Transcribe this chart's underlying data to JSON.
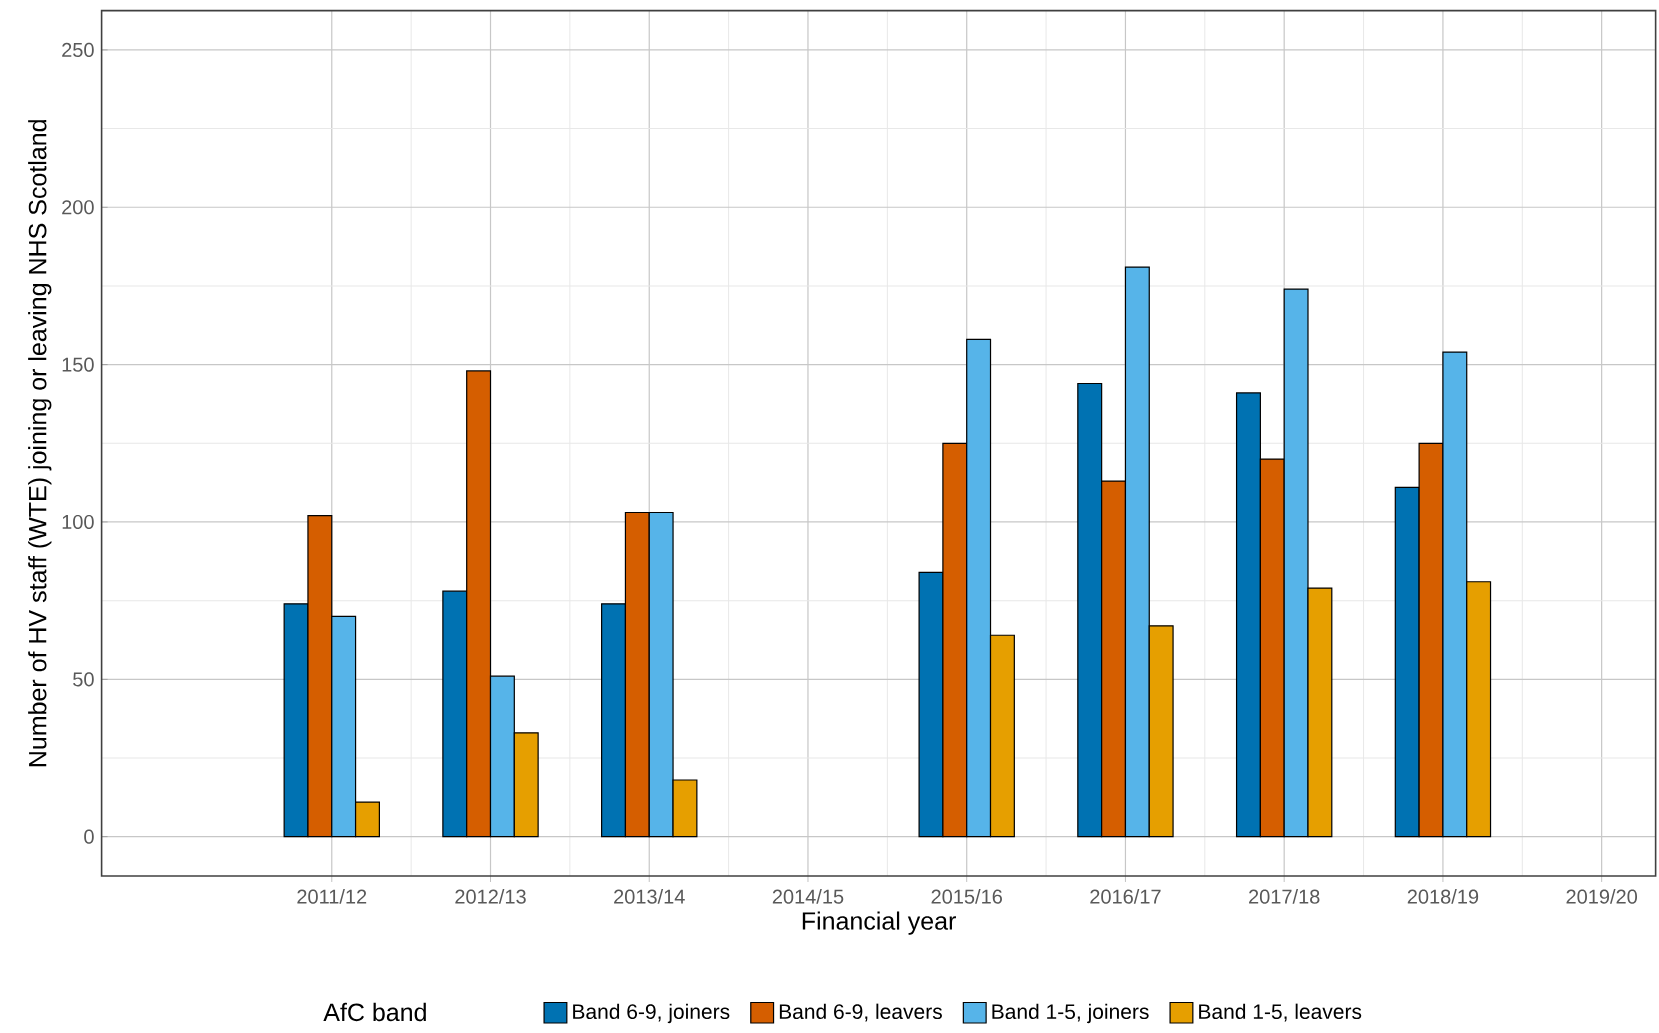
{
  "chart_data": {
    "type": "bar",
    "xlabel": "Financial year",
    "ylabel": "Number of HV staff (WTE) joining or leaving NHS Scotland",
    "legend_title": "AfC band",
    "categories": [
      "2011/12",
      "2012/13",
      "2013/14",
      "2014/15",
      "2015/16",
      "2016/17",
      "2017/18",
      "2018/19",
      "2019/20"
    ],
    "series": [
      {
        "name": "Band 6-9, joiners",
        "color": "#0072b2",
        "values": [
          74,
          78,
          74,
          null,
          84,
          144,
          141,
          111,
          null
        ]
      },
      {
        "name": "Band 6-9, leavers",
        "color": "#d55e00",
        "values": [
          102,
          148,
          103,
          null,
          125,
          113,
          120,
          125,
          null
        ]
      },
      {
        "name": "Band 1-5, joiners",
        "color": "#56b4e9",
        "values": [
          70,
          51,
          103,
          null,
          158,
          181,
          174,
          154,
          null
        ]
      },
      {
        "name": "Band 1-5, leavers",
        "color": "#e69f00",
        "values": [
          11,
          33,
          18,
          null,
          64,
          67,
          79,
          81,
          null
        ]
      }
    ],
    "ylim": [
      -12.5,
      262.5
    ],
    "yticks": [
      0,
      50,
      100,
      150,
      200,
      250
    ],
    "grid": true,
    "legend": "bottom"
  }
}
